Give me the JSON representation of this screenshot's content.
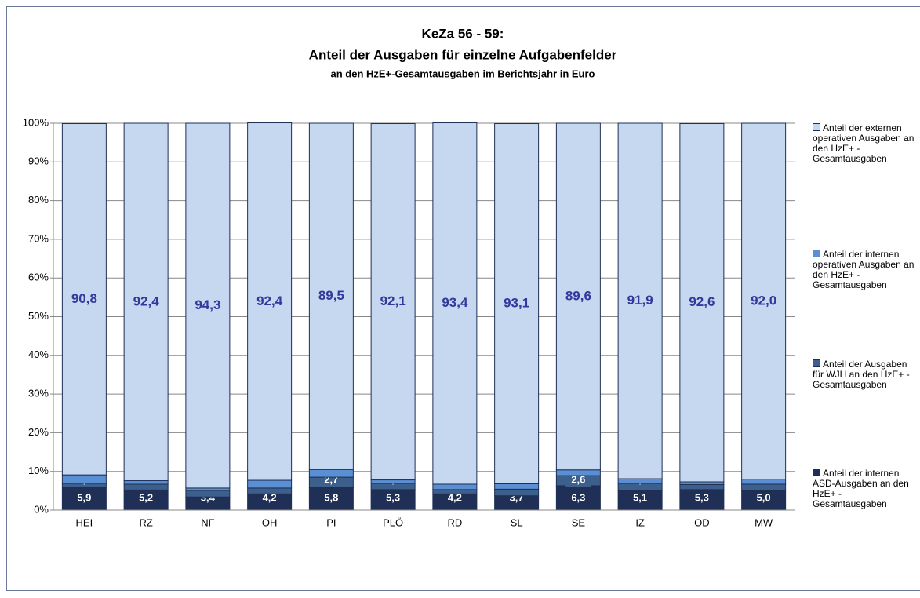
{
  "chart_data": {
    "type": "stacked_bar",
    "title": "KeZa 56 - 59:",
    "subtitle": "Anteil der Ausgaben für einzelne Aufgabenfelder",
    "subtitle2": "an den HzE+-Gesamtausgaben im Berichtsjahr in Euro",
    "categories": [
      "HEI",
      "RZ",
      "NF",
      "OH",
      "PI",
      "PLÖ",
      "RD",
      "SL",
      "SE",
      "IZ",
      "OD",
      "MW"
    ],
    "series": [
      {
        "name": "Anteil der internen ASD-Ausgaben an den HzE+ - Gesamtausgaben",
        "color": "#1f2f55",
        "values": [
          5.9,
          5.2,
          3.4,
          4.2,
          5.8,
          5.3,
          4.2,
          3.7,
          6.3,
          5.1,
          5.3,
          5.0
        ],
        "value_labels": [
          "5,9",
          "5,2",
          "3,4",
          "4,2",
          "5,8",
          "5,3",
          "4,2",
          "3,7",
          "6,3",
          "5,1",
          "5,3",
          "5,0"
        ]
      },
      {
        "name": "Anteil der Ausgaben für WJH an den HzE+ - Gesamtausgaben",
        "color": "#3d5f8c",
        "values": [
          1.0,
          1.5,
          1.7,
          1.5,
          2.7,
          1.6,
          1.1,
          1.7,
          2.6,
          1.8,
          1.3,
          1.7
        ],
        "value_labels": [
          "1,0",
          "1,5",
          "1,7",
          "1,5",
          "2,7",
          "1,6",
          "1,1",
          "1,7",
          "2,6",
          "1,8",
          "1,3",
          "1,7"
        ]
      },
      {
        "name": "Anteil der internen operativen Ausgaben an den HzE+ - Gesamtausgaben",
        "color": "#5b8fd3",
        "values": [
          2.2,
          0.9,
          0.6,
          2.0,
          2.0,
          0.9,
          1.4,
          1.4,
          1.5,
          1.2,
          0.7,
          1.3
        ],
        "value_labels": [
          "2,2",
          "0,9",
          "0,6",
          "2,0",
          "2,0",
          "0,9",
          "1,4",
          "1,4",
          "1,5",
          "1,2",
          "0,7",
          "1,3"
        ]
      },
      {
        "name": "Anteil der externen operativen Ausgaben  an den HzE+ - Gesamtausgaben",
        "color": "#c6d7f0",
        "values": [
          90.8,
          92.4,
          94.3,
          92.4,
          89.5,
          92.1,
          93.4,
          93.1,
          89.6,
          91.9,
          92.6,
          92.0
        ],
        "value_labels": [
          "90,8",
          "92,4",
          "94,3",
          "92,4",
          "89,5",
          "92,1",
          "93,4",
          "93,1",
          "89,6",
          "91,9",
          "92,6",
          "92,0"
        ]
      }
    ],
    "ylim": [
      0,
      100
    ],
    "yticks": [
      {
        "value": 0,
        "label": "0%"
      },
      {
        "value": 10,
        "label": "10%"
      },
      {
        "value": 20,
        "label": "20%"
      },
      {
        "value": 30,
        "label": "30%"
      },
      {
        "value": 40,
        "label": "40%"
      },
      {
        "value": 50,
        "label": "50%"
      },
      {
        "value": 60,
        "label": "60%"
      },
      {
        "value": 70,
        "label": "70%"
      },
      {
        "value": 80,
        "label": "80%"
      },
      {
        "value": 90,
        "label": "90%"
      },
      {
        "value": 100,
        "label": "100%"
      }
    ],
    "grid": true,
    "legend": "right"
  }
}
